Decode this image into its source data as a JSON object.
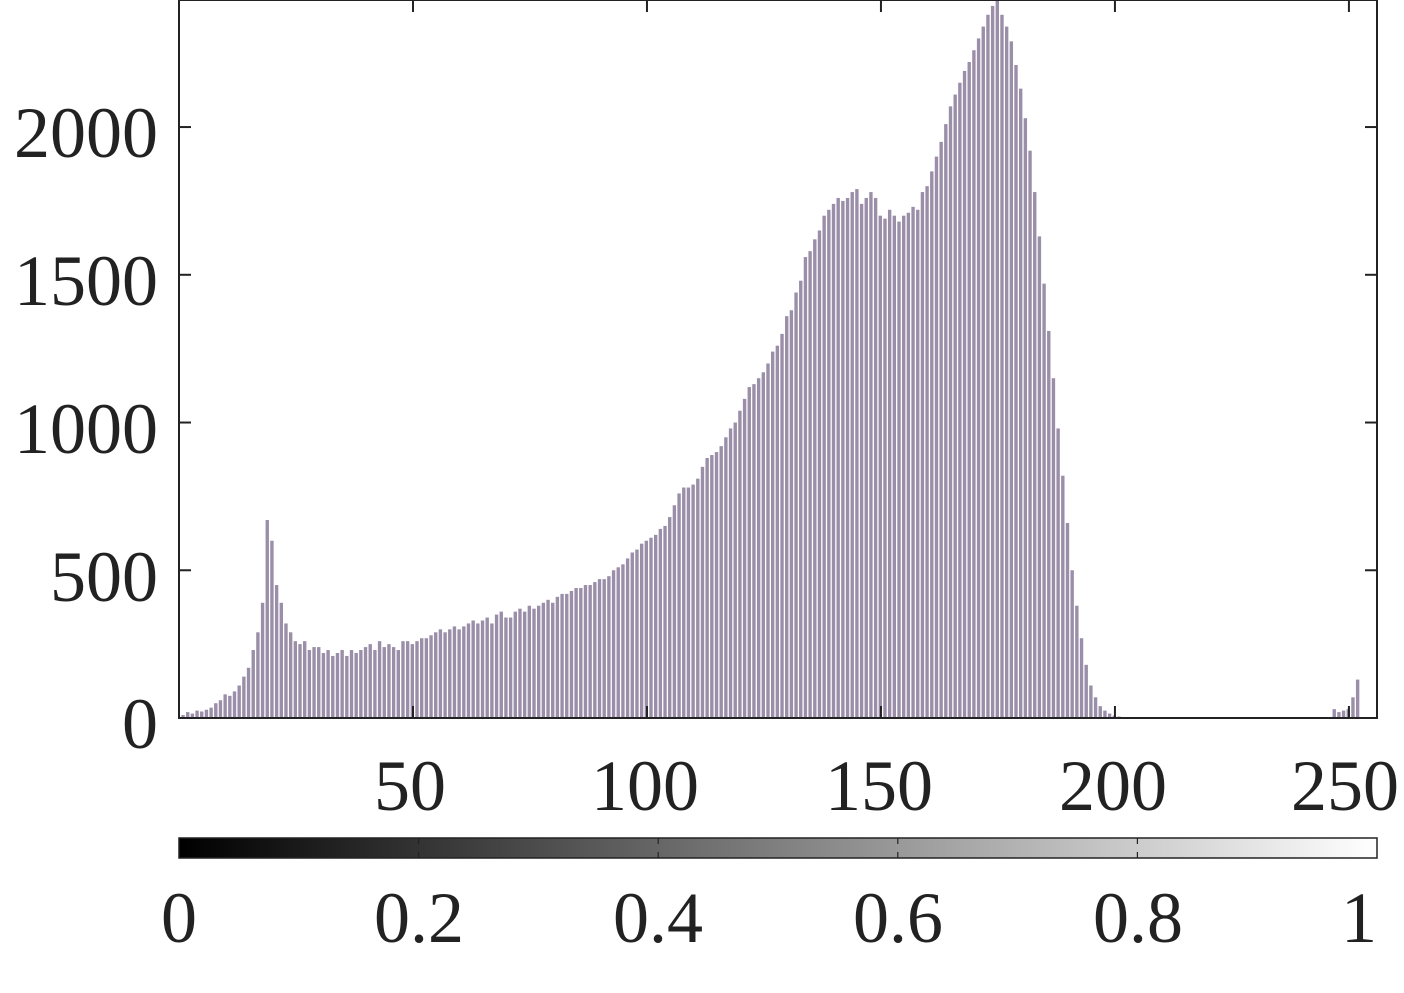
{
  "chart_data": {
    "type": "bar",
    "title": "",
    "xlabel": "",
    "ylabel": "",
    "xlim": [
      0,
      256
    ],
    "ylim": [
      0,
      2430
    ],
    "x_ticks": [
      50,
      100,
      150,
      200,
      250
    ],
    "y_ticks": [
      0,
      500,
      1000,
      1500,
      2000
    ],
    "x_tick_labels": [
      "50",
      "100",
      "150",
      "200",
      "250"
    ],
    "y_tick_labels": [
      "0",
      "500",
      "1000",
      "1500",
      "2000"
    ],
    "bin_start": 1,
    "bin_step": 1,
    "bar_color": "#9a8ea8",
    "grid": false,
    "legend": "none",
    "values": [
      10,
      20,
      15,
      25,
      22,
      28,
      35,
      50,
      60,
      80,
      75,
      90,
      110,
      140,
      170,
      230,
      290,
      390,
      670,
      600,
      450,
      390,
      320,
      290,
      260,
      250,
      260,
      230,
      240,
      240,
      220,
      230,
      210,
      220,
      230,
      210,
      230,
      220,
      230,
      240,
      250,
      230,
      260,
      240,
      250,
      240,
      230,
      260,
      260,
      250,
      260,
      270,
      270,
      280,
      290,
      300,
      290,
      300,
      310,
      300,
      310,
      320,
      330,
      320,
      330,
      340,
      320,
      350,
      360,
      340,
      340,
      360,
      370,
      360,
      380,
      370,
      380,
      390,
      400,
      390,
      410,
      420,
      420,
      430,
      440,
      440,
      450,
      450,
      460,
      470,
      470,
      480,
      500,
      510,
      520,
      540,
      560,
      570,
      590,
      600,
      610,
      620,
      640,
      650,
      680,
      720,
      760,
      780,
      780,
      790,
      810,
      850,
      880,
      890,
      900,
      920,
      950,
      980,
      1000,
      1040,
      1080,
      1120,
      1130,
      1150,
      1170,
      1200,
      1240,
      1260,
      1300,
      1360,
      1380,
      1440,
      1480,
      1560,
      1580,
      1620,
      1650,
      1700,
      1720,
      1740,
      1760,
      1750,
      1760,
      1780,
      1790,
      1740,
      1760,
      1780,
      1760,
      1700,
      1690,
      1720,
      1700,
      1680,
      1700,
      1710,
      1730,
      1720,
      1780,
      1800,
      1850,
      1900,
      1950,
      2010,
      2070,
      2110,
      2150,
      2190,
      2220,
      2260,
      2300,
      2340,
      2380,
      2410,
      2430,
      2380,
      2340,
      2290,
      2210,
      2130,
      2030,
      1920,
      1780,
      1630,
      1470,
      1310,
      1150,
      980,
      820,
      660,
      500,
      380,
      270,
      180,
      110,
      70,
      40,
      25,
      15,
      8,
      5,
      3,
      2,
      0,
      0,
      0,
      0,
      0,
      0,
      0,
      0,
      0,
      0,
      0,
      0,
      0,
      0,
      0,
      0,
      0,
      0,
      0,
      0,
      0,
      0,
      0,
      0,
      0,
      0,
      0,
      0,
      0,
      0,
      0,
      0,
      0,
      0,
      0,
      0,
      0,
      0,
      0,
      0,
      0,
      0,
      0,
      30,
      20,
      25,
      30,
      70,
      130
    ]
  },
  "colorbar": {
    "colormap": "gray",
    "range": [
      0,
      1
    ],
    "ticks": [
      0,
      0.2,
      0.4,
      0.6,
      0.8,
      1
    ],
    "tick_labels": [
      "0",
      "0.2",
      "0.4",
      "0.6",
      "0.8",
      "1"
    ],
    "color_start": "#000000",
    "color_end": "#ffffff"
  }
}
